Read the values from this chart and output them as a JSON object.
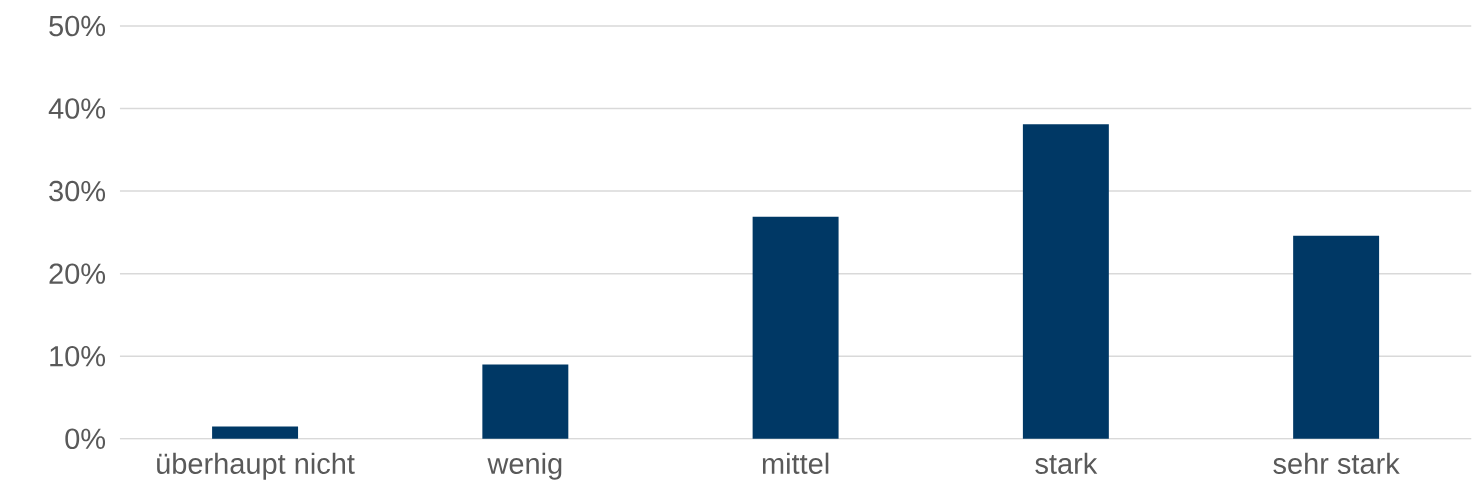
{
  "chart_data": {
    "type": "bar",
    "categories": [
      "überhaupt nicht",
      "wenig",
      "mittel",
      "stark",
      "sehr stark"
    ],
    "values": [
      1.5,
      9.0,
      26.9,
      38.1,
      24.6
    ],
    "color": "#003865",
    "ylim": [
      0,
      50
    ],
    "yticks": [
      {
        "value": 0,
        "label": "0%"
      },
      {
        "value": 10,
        "label": "10%"
      },
      {
        "value": 20,
        "label": "20%"
      },
      {
        "value": 30,
        "label": "30%"
      },
      {
        "value": 40,
        "label": "40%"
      },
      {
        "value": 50,
        "label": "50%"
      }
    ],
    "grid": "y"
  }
}
